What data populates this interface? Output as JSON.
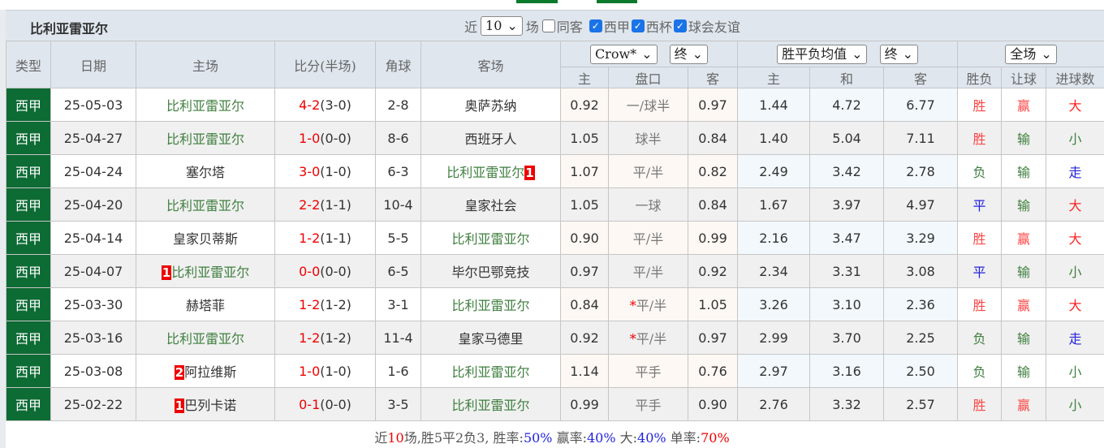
{
  "title": "比利亚雷亚尔",
  "filters": {
    "near_label": "近",
    "count": "10",
    "games_label": "场",
    "checkboxes": [
      {
        "label": "同客",
        "checked": false
      },
      {
        "label": "西甲",
        "checked": true
      },
      {
        "label": "西杯",
        "checked": true
      },
      {
        "label": "球会友谊",
        "checked": true
      }
    ]
  },
  "headers": {
    "type": "类型",
    "date": "日期",
    "home": "主场",
    "score": "比分(半场)",
    "corner": "角球",
    "away": "客场",
    "company": "Crow*",
    "company_time": "终",
    "odds_type": "胜平负均值",
    "odds_time": "终",
    "scope": "全场",
    "sub": [
      "主",
      "盘口",
      "客",
      "主",
      "和",
      "客",
      "胜负",
      "让球",
      "进球数"
    ]
  },
  "colors": {
    "league": "#0d6b34",
    "team": "#3f7f3f",
    "score": "#e00",
    "win": "#f44",
    "draw": "#2222dd",
    "lose": "#3f7f3f"
  },
  "rows": [
    {
      "type": "西甲",
      "date": "25-05-03",
      "home": "比利亚雷亚尔",
      "home_green": true,
      "home_badge": "",
      "away": "奥萨苏纳",
      "away_green": false,
      "away_badge": "",
      "score": "4-2",
      "half": "(3-0)",
      "corner": "2-8",
      "h": "0.92",
      "line": "一/球半",
      "line_star": "",
      "a": "0.97",
      "w": "1.44",
      "d": "4.72",
      "l": "6.77",
      "r1": "胜",
      "r2": "赢",
      "r3": "大"
    },
    {
      "type": "西甲",
      "date": "25-04-27",
      "home": "比利亚雷亚尔",
      "home_green": true,
      "home_badge": "",
      "away": "西班牙人",
      "away_green": false,
      "away_badge": "",
      "score": "1-0",
      "half": "(0-0)",
      "corner": "8-6",
      "h": "1.05",
      "line": "球半",
      "line_star": "",
      "a": "0.84",
      "w": "1.40",
      "d": "5.04",
      "l": "7.11",
      "r1": "胜",
      "r2": "输",
      "r3": "小"
    },
    {
      "type": "西甲",
      "date": "25-04-24",
      "home": "塞尔塔",
      "home_green": false,
      "home_badge": "",
      "away": "比利亚雷亚尔",
      "away_green": true,
      "away_badge": "1",
      "score": "3-0",
      "half": "(1-0)",
      "corner": "6-3",
      "h": "1.07",
      "line": "平/半",
      "line_star": "",
      "a": "0.82",
      "w": "2.49",
      "d": "3.42",
      "l": "2.78",
      "r1": "负",
      "r2": "输",
      "r3": "走"
    },
    {
      "type": "西甲",
      "date": "25-04-20",
      "home": "比利亚雷亚尔",
      "home_green": true,
      "home_badge": "",
      "away": "皇家社会",
      "away_green": false,
      "away_badge": "",
      "score": "2-2",
      "half": "(1-1)",
      "corner": "10-4",
      "h": "1.05",
      "line": "一球",
      "line_star": "",
      "a": "0.84",
      "w": "1.67",
      "d": "3.97",
      "l": "4.97",
      "r1": "平",
      "r2": "输",
      "r3": "大"
    },
    {
      "type": "西甲",
      "date": "25-04-14",
      "home": "皇家贝蒂斯",
      "home_green": false,
      "home_badge": "",
      "away": "比利亚雷亚尔",
      "away_green": true,
      "away_badge": "",
      "score": "1-2",
      "half": "(1-1)",
      "corner": "5-5",
      "h": "0.90",
      "line": "平/半",
      "line_star": "",
      "a": "0.99",
      "w": "2.16",
      "d": "3.47",
      "l": "3.29",
      "r1": "胜",
      "r2": "赢",
      "r3": "大"
    },
    {
      "type": "西甲",
      "date": "25-04-07",
      "home": "比利亚雷亚尔",
      "home_green": true,
      "home_badge_before": "1",
      "away": "毕尔巴鄂竞技",
      "away_green": false,
      "away_badge": "",
      "score": "0-0",
      "half": "(0-0)",
      "corner": "6-5",
      "h": "0.97",
      "line": "平/半",
      "line_star": "",
      "a": "0.92",
      "w": "2.34",
      "d": "3.31",
      "l": "3.08",
      "r1": "平",
      "r2": "输",
      "r3": "小"
    },
    {
      "type": "西甲",
      "date": "25-03-30",
      "home": "赫塔菲",
      "home_green": false,
      "home_badge": "",
      "away": "比利亚雷亚尔",
      "away_green": true,
      "away_badge": "",
      "score": "1-2",
      "half": "(1-2)",
      "corner": "3-1",
      "h": "0.84",
      "line": "平/半",
      "line_star": "*",
      "a": "1.05",
      "w": "3.26",
      "d": "3.10",
      "l": "2.36",
      "r1": "胜",
      "r2": "赢",
      "r3": "大"
    },
    {
      "type": "西甲",
      "date": "25-03-16",
      "home": "比利亚雷亚尔",
      "home_green": true,
      "home_badge": "",
      "away": "皇家马德里",
      "away_green": false,
      "away_badge": "",
      "score": "1-2",
      "half": "(1-2)",
      "corner": "11-4",
      "h": "0.92",
      "line": "平/半",
      "line_star": "*",
      "a": "0.97",
      "w": "2.99",
      "d": "3.70",
      "l": "2.25",
      "r1": "负",
      "r2": "输",
      "r3": "走"
    },
    {
      "type": "西甲",
      "date": "25-03-08",
      "home": "阿拉维斯",
      "home_green": false,
      "home_badge_before": "2",
      "away": "比利亚雷亚尔",
      "away_green": true,
      "away_badge": "",
      "score": "1-0",
      "half": "(1-0)",
      "corner": "1-6",
      "h": "1.14",
      "line": "平手",
      "line_star": "",
      "a": "0.76",
      "w": "2.97",
      "d": "3.16",
      "l": "2.50",
      "r1": "负",
      "r2": "输",
      "r3": "小"
    },
    {
      "type": "西甲",
      "date": "25-02-22",
      "home": "巴列卡诺",
      "home_green": false,
      "home_badge_before": "1",
      "away": "比利亚雷亚尔",
      "away_green": true,
      "away_badge": "",
      "score": "0-1",
      "half": "(0-0)",
      "corner": "3-5",
      "h": "0.99",
      "line": "平手",
      "line_star": "",
      "a": "0.90",
      "w": "2.76",
      "d": "3.32",
      "l": "2.57",
      "r1": "胜",
      "r2": "赢",
      "r3": "小"
    }
  ],
  "footer": {
    "p1": "近",
    "n": "10",
    "p2": "场,胜5平2负3, 胜率:",
    "win_rate": "50%",
    "p3": " 赢率:",
    "cover_rate": "40%",
    "p4": " 大:",
    "over_rate": "40%",
    "p5": " 单率:",
    "odd_rate": "70%"
  }
}
